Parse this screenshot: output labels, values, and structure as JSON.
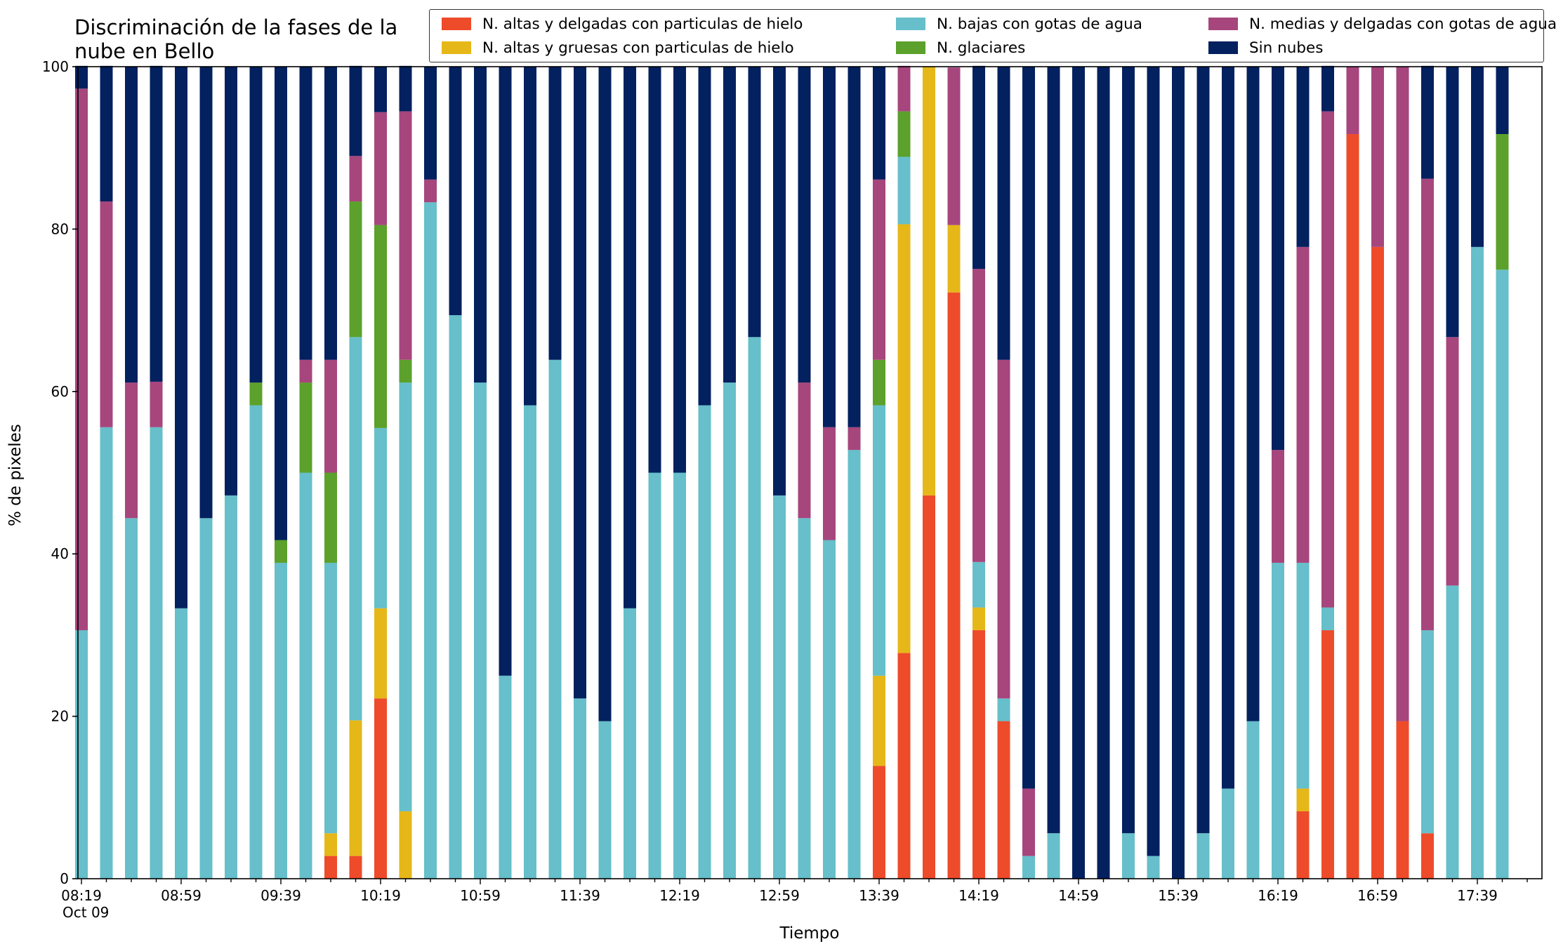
{
  "chart_data": {
    "type": "bar",
    "stacked": true,
    "title": "Discriminación de la fases de la\nnube en Bello",
    "xlabel": "Tiempo",
    "ylabel": "% de pixeles",
    "ylim": [
      0,
      100
    ],
    "yticks": [
      0,
      20,
      40,
      60,
      80,
      100
    ],
    "grid": false,
    "legend_position": "top",
    "x_tick_labels": [
      "08:19",
      "08:59",
      "09:39",
      "10:19",
      "10:59",
      "11:39",
      "12:19",
      "12:59",
      "13:39",
      "14:19",
      "14:59",
      "15:39",
      "16:19",
      "16:59",
      "17:39"
    ],
    "x_date_label": "Oct 09",
    "categories": [
      "08:19",
      "08:29",
      "08:39",
      "08:49",
      "08:59",
      "09:09",
      "09:19",
      "09:29",
      "09:39",
      "09:49",
      "09:59",
      "10:09",
      "10:19",
      "10:29",
      "10:39",
      "10:49",
      "10:59",
      "11:09",
      "11:19",
      "11:29",
      "11:39",
      "11:49",
      "11:59",
      "12:09",
      "12:19",
      "12:29",
      "12:39",
      "12:49",
      "12:59",
      "13:09",
      "13:19",
      "13:29",
      "13:39",
      "13:49",
      "13:59",
      "14:09",
      "14:19",
      "14:29",
      "14:39",
      "14:49",
      "14:59",
      "15:09",
      "15:19",
      "15:29",
      "15:39",
      "15:49",
      "15:59",
      "16:09",
      "16:19",
      "16:29",
      "16:39",
      "16:49",
      "16:59",
      "17:09",
      "17:19",
      "17:29",
      "17:39",
      "17:49"
    ],
    "series": [
      {
        "name": "N. altas y delgadas con particulas de hielo",
        "color": "#EE4B2B",
        "values": [
          0,
          0,
          0,
          0,
          0,
          0,
          0,
          0,
          0,
          0,
          2.8,
          2.8,
          22.2,
          0,
          0,
          0,
          0,
          0,
          0,
          0,
          0,
          0,
          0,
          0,
          0,
          0,
          0,
          0,
          0,
          0,
          0,
          0,
          13.9,
          27.8,
          47.2,
          72.2,
          30.6,
          19.4,
          0,
          0,
          0,
          0,
          0,
          0,
          0,
          0,
          0,
          0,
          0,
          8.3,
          30.6,
          91.7,
          77.8,
          19.4,
          5.6,
          0,
          0,
          0
        ]
      },
      {
        "name": "N. altas y gruesas con particulas de hielo",
        "color": "#E6B718",
        "values": [
          0,
          0,
          0,
          0,
          0,
          0,
          0,
          0,
          0,
          0,
          2.8,
          16.7,
          11.1,
          8.3,
          0,
          0,
          0,
          0,
          0,
          0,
          0,
          0,
          0,
          0,
          0,
          0,
          0,
          0,
          0,
          0,
          0,
          0,
          11.1,
          52.8,
          52.8,
          8.3,
          2.8,
          0,
          0,
          0,
          0,
          0,
          0,
          0,
          0,
          0,
          0,
          0,
          0,
          2.8,
          0,
          0,
          0,
          0,
          0,
          0,
          0,
          0
        ]
      },
      {
        "name": "N. bajas con gotas de agua",
        "color": "#66BFCA",
        "values": [
          30.6,
          55.6,
          44.4,
          55.6,
          33.3,
          44.4,
          47.2,
          58.3,
          38.9,
          50,
          33.3,
          47.2,
          22.2,
          52.8,
          83.3,
          69.4,
          61.1,
          25,
          58.3,
          63.9,
          22.2,
          19.4,
          33.3,
          50,
          50,
          58.3,
          61.1,
          66.7,
          47.2,
          44.4,
          41.7,
          52.8,
          33.3,
          8.3,
          0,
          0,
          5.6,
          2.8,
          2.8,
          5.6,
          0,
          0,
          5.6,
          2.8,
          0,
          5.6,
          11.1,
          19.4,
          38.9,
          27.8,
          2.8,
          0,
          0,
          0,
          25,
          36.1,
          77.8,
          75
        ]
      },
      {
        "name": "N. glaciares",
        "color": "#5BA12B",
        "values": [
          0,
          0,
          0,
          0,
          0,
          0,
          0,
          2.8,
          2.8,
          11.1,
          11.1,
          16.7,
          25,
          2.8,
          0,
          0,
          0,
          0,
          0,
          0,
          0,
          0,
          0,
          0,
          0,
          0,
          0,
          0,
          0,
          0,
          0,
          0,
          5.6,
          5.6,
          0,
          0,
          0,
          0,
          0,
          0,
          0,
          0,
          0,
          0,
          0,
          0,
          0,
          0,
          0,
          0,
          0,
          0,
          0,
          0,
          0,
          0,
          0,
          16.7
        ]
      },
      {
        "name": "N. medias y delgadas con gotas de agua",
        "color": "#A6467D",
        "values": [
          66.7,
          27.8,
          16.7,
          5.6,
          0,
          0,
          0,
          0,
          0,
          2.8,
          13.9,
          5.6,
          13.9,
          30.6,
          2.8,
          0,
          0,
          0,
          0,
          0,
          0,
          0,
          0,
          0,
          0,
          0,
          0,
          0,
          0,
          16.7,
          13.9,
          2.8,
          22.2,
          5.6,
          0,
          19.4,
          36.1,
          41.7,
          8.3,
          0,
          0,
          0,
          0,
          0,
          0,
          0,
          0,
          0,
          13.9,
          38.9,
          61.1,
          8.3,
          22.2,
          80.6,
          55.6,
          30.6,
          0,
          0
        ]
      },
      {
        "name": "Sin nubes",
        "color": "#03205F",
        "values": [
          2.8,
          16.7,
          38.9,
          38.9,
          66.7,
          55.6,
          52.8,
          38.9,
          58.3,
          36.1,
          36.1,
          11.1,
          5.6,
          5.6,
          13.9,
          30.6,
          38.9,
          75,
          41.7,
          36.1,
          77.8,
          80.6,
          66.7,
          50,
          50,
          41.7,
          38.9,
          33.3,
          52.8,
          38.9,
          44.4,
          44.4,
          13.9,
          0,
          0,
          0,
          25,
          36.1,
          88.9,
          94.4,
          100,
          100,
          94.4,
          97.2,
          100,
          94.4,
          88.9,
          80.6,
          47.2,
          22.2,
          5.6,
          0,
          0,
          0,
          13.9,
          33.3,
          22.2,
          8.3
        ]
      }
    ]
  }
}
